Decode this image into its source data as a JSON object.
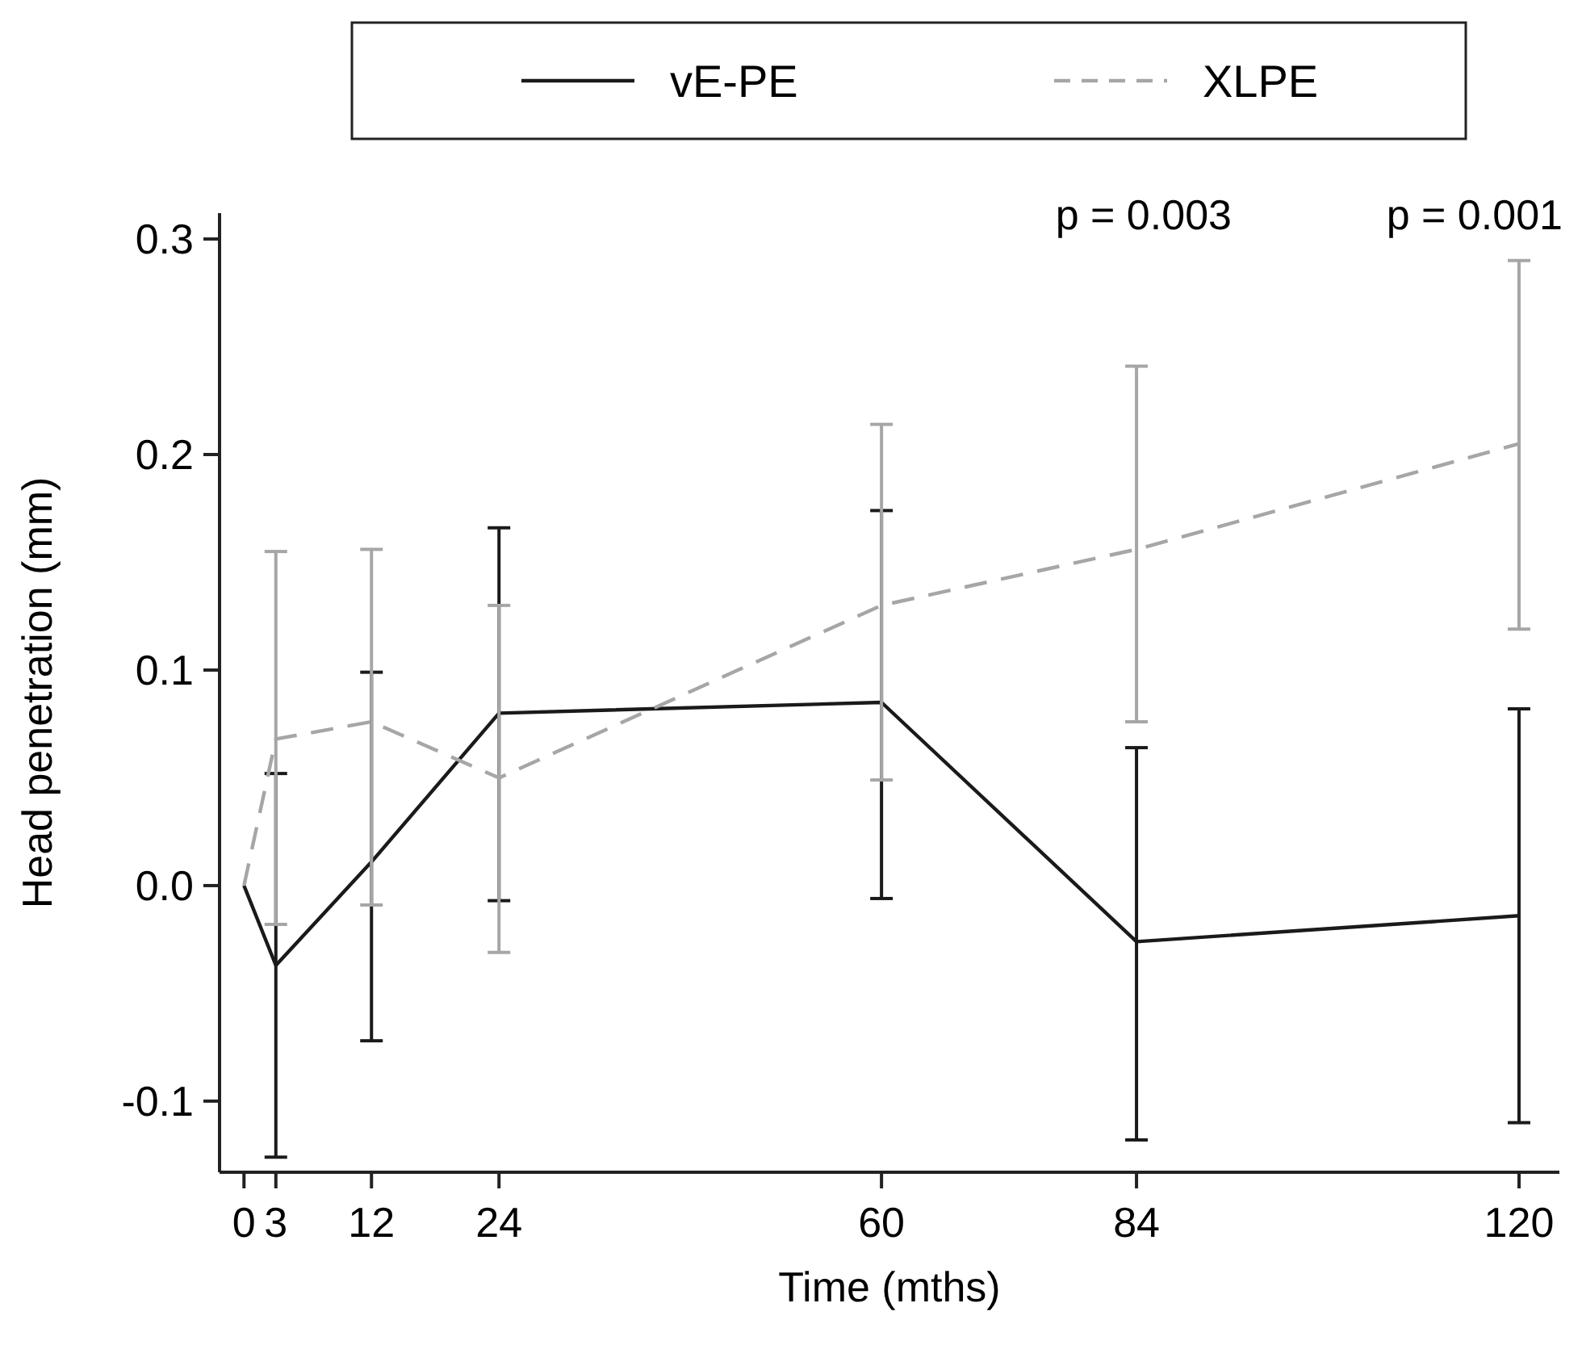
{
  "chart_data": {
    "type": "line",
    "xlabel": "Time (mths)",
    "ylabel": "Head penetration (mm)",
    "xlim": [
      -2.3,
      123.8
    ],
    "xticks": [
      0,
      3,
      12,
      24,
      60,
      84,
      120
    ],
    "ylim": [
      -0.133,
      0.312
    ],
    "yticks": [
      -0.1,
      {
        "value": 0,
        "label": "0.0"
      },
      0.1,
      0.2,
      0.3
    ],
    "series": [
      {
        "name": "vE-PE",
        "color": "#1a1a1a",
        "line_style": "solid",
        "x": [
          0,
          3,
          12,
          24,
          60,
          84,
          120
        ],
        "values": [
          0,
          -0.037,
          0.011,
          0.08,
          0.085,
          -0.026,
          -0.014
        ],
        "errors": [
          null,
          [
            -0.126,
            0.052
          ],
          [
            -0.072,
            0.099
          ],
          [
            -0.007,
            0.166
          ],
          [
            -0.006,
            0.174
          ],
          [
            -0.118,
            0.064
          ],
          [
            -0.11,
            0.082
          ]
        ]
      },
      {
        "name": "XLPE",
        "color": "#a6a6a6",
        "line_style": "dashed",
        "x": [
          0,
          3,
          12,
          24,
          60,
          84,
          120
        ],
        "values": [
          0,
          0.068,
          0.076,
          0.05,
          0.13,
          0.156,
          0.205
        ],
        "errors": [
          null,
          [
            -0.018,
            0.155
          ],
          [
            -0.009,
            0.156
          ],
          [
            -0.031,
            0.13
          ],
          [
            0.049,
            0.214
          ],
          [
            0.076,
            0.241
          ],
          [
            0.119,
            0.29
          ]
        ]
      }
    ],
    "annotations": [
      "p = 0.003",
      "p = 0.001"
    ],
    "legend": "top",
    "grid": false,
    "marker": "none"
  }
}
